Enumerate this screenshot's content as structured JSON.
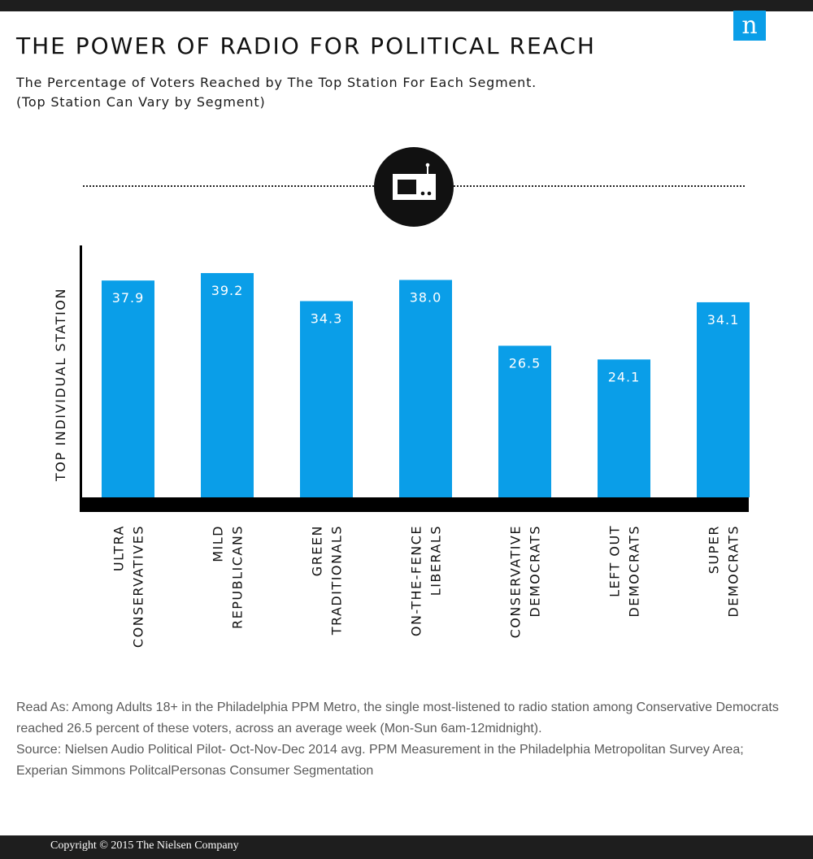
{
  "header": {
    "title": "THE POWER OF RADIO FOR POLITICAL REACH",
    "subtitle_line1": "The Percentage of Voters Reached by The Top Station For Each Segment.",
    "subtitle_line2": "(Top Station Can Vary by Segment)",
    "logo_glyph": "n",
    "logo_icon": "nielsen-logo-icon"
  },
  "divider": {
    "icon": "radio-icon"
  },
  "colors": {
    "bar": "#0a9ee8",
    "axis": "#000000",
    "logo": "#0a9ee8",
    "topbar": "#1e1e1e"
  },
  "chart_data": {
    "type": "bar",
    "categories": [
      [
        "ULTRA",
        "CONSERVATIVES"
      ],
      [
        "MILD",
        "REPUBLICANS"
      ],
      [
        "GREEN",
        "TRADITIONALS"
      ],
      [
        "ON-THE-FENCE",
        "LIBERALS"
      ],
      [
        "CONSERVATIVE",
        "DEMOCRATS"
      ],
      [
        "LEFT OUT",
        "DEMOCRATS"
      ],
      [
        "SUPER",
        "DEMOCRATS"
      ]
    ],
    "values": [
      37.9,
      39.2,
      34.3,
      38.0,
      26.5,
      24.1,
      34.1
    ],
    "value_labels": [
      "37.9",
      "39.2",
      "34.3",
      "38.0",
      "26.5",
      "24.1",
      "34.1"
    ],
    "ylabel": "TOP INDIVIDUAL STATION",
    "xlabel": "",
    "ylim": [
      0,
      40
    ],
    "grid": false,
    "legend": "none"
  },
  "footnote": {
    "read_as": "Read As: Among Adults 18+ in the Philadelphia PPM Metro, the single most-listened to radio station among Conservative Democrats reached 26.5 percent of these voters, across an average week (Mon-Sun 6am-12midnight).",
    "source": "Source: Nielsen Audio Political Pilot- Oct-Nov-Dec 2014 avg. PPM Measurement in the Philadelphia Metropolitan Survey Area; Experian Simmons PolitcalPersonas Consumer Segmentation"
  },
  "footer": {
    "copyright": "Copyright © 2015 The Nielsen Company"
  }
}
